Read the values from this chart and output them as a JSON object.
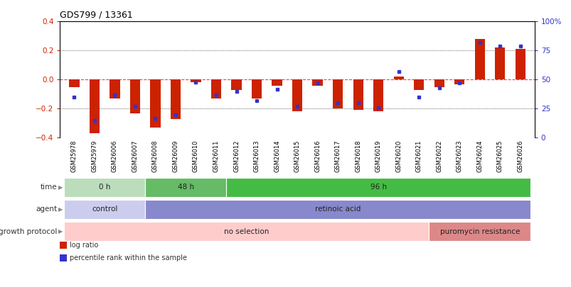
{
  "title": "GDS799 / 13361",
  "samples": [
    "GSM25978",
    "GSM25979",
    "GSM26006",
    "GSM26007",
    "GSM26008",
    "GSM26009",
    "GSM26010",
    "GSM26011",
    "GSM26012",
    "GSM26013",
    "GSM26014",
    "GSM26015",
    "GSM26016",
    "GSM26017",
    "GSM26018",
    "GSM26019",
    "GSM26020",
    "GSM26021",
    "GSM26022",
    "GSM26023",
    "GSM26024",
    "GSM26025",
    "GSM26026"
  ],
  "log_ratio": [
    -0.05,
    -0.37,
    -0.13,
    -0.23,
    -0.33,
    -0.27,
    -0.02,
    -0.13,
    -0.07,
    -0.13,
    -0.04,
    -0.22,
    -0.04,
    -0.2,
    -0.21,
    -0.22,
    0.02,
    -0.07,
    -0.05,
    -0.03,
    0.28,
    0.22,
    0.21
  ],
  "percentile": [
    35,
    15,
    37,
    27,
    17,
    20,
    48,
    37,
    40,
    32,
    42,
    27,
    47,
    30,
    30,
    26,
    57,
    35,
    43,
    47,
    82,
    79,
    79
  ],
  "ylim_left": [
    -0.4,
    0.4
  ],
  "ylim_right": [
    0,
    100
  ],
  "yticks_left": [
    -0.4,
    -0.2,
    0.0,
    0.2,
    0.4
  ],
  "yticks_right": [
    0,
    25,
    50,
    75,
    100
  ],
  "ytick_labels_right": [
    "0",
    "25",
    "50",
    "75",
    "100%"
  ],
  "bar_color_red": "#cc2200",
  "bar_color_blue": "#3333cc",
  "hline_color": "#ee4444",
  "dotted_line_color": "#333333",
  "bg_color": "#ffffff",
  "time_labels": [
    {
      "label": "0 h",
      "start": 0,
      "end": 4,
      "color": "#bbddbb"
    },
    {
      "label": "48 h",
      "start": 4,
      "end": 8,
      "color": "#66bb66"
    },
    {
      "label": "96 h",
      "start": 8,
      "end": 23,
      "color": "#44bb44"
    }
  ],
  "agent_labels": [
    {
      "label": "control",
      "start": 0,
      "end": 4,
      "color": "#ccccee"
    },
    {
      "label": "retinoic acid",
      "start": 4,
      "end": 23,
      "color": "#8888cc"
    }
  ],
  "growth_labels": [
    {
      "label": "no selection",
      "start": 0,
      "end": 18,
      "color": "#ffcccc"
    },
    {
      "label": "puromycin resistance",
      "start": 18,
      "end": 23,
      "color": "#dd8888"
    }
  ],
  "row_labels": [
    "time",
    "agent",
    "growth protocol"
  ],
  "legend_items": [
    {
      "color": "#cc2200",
      "label": "log ratio"
    },
    {
      "color": "#3333cc",
      "label": "percentile rank within the sample"
    }
  ],
  "arrow_color": "#888888"
}
